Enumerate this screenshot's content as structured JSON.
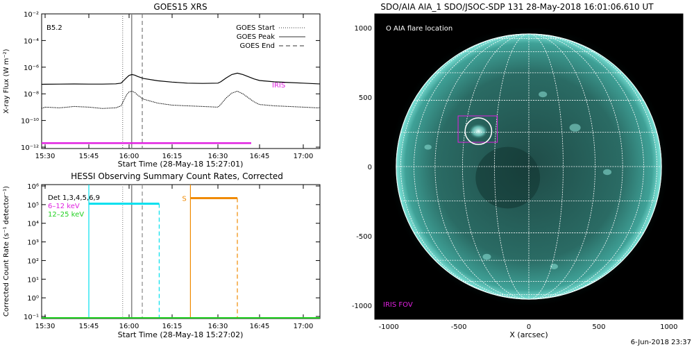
{
  "chart_data": [
    {
      "type": "line",
      "title": "GOES15 XRS",
      "xlabel": "Start Time (28-May-18 15:27:01)",
      "ylabel": "X-ray Flux (W m⁻²)",
      "x_ticks": [
        "15:30",
        "15:45",
        "16:00",
        "16:15",
        "16:30",
        "16:45",
        "17:00"
      ],
      "y_ticks": [
        "10⁻¹²",
        "10⁻¹⁰",
        "10⁻⁸",
        "10⁻⁶",
        "10⁻⁴",
        "10⁻²"
      ],
      "xlim_minutes": [
        25,
        65
      ],
      "ylim_log10": [
        -12,
        -2
      ],
      "class_label": "B5.2",
      "legend": [
        {
          "label": "GOES Start",
          "style": "dotted",
          "x_min": 57.6
        },
        {
          "label": "GOES Peak",
          "style": "solid",
          "x_min": 60.9
        },
        {
          "label": "GOES End",
          "style": "dashed",
          "x_min": 64.6
        }
      ],
      "legend_position": "top-right",
      "iris_label": "IRIS",
      "iris_color": "#e020e0",
      "iris_bar": {
        "x_start_min": 25,
        "x_end_min": 102,
        "log10_value": -11.7
      },
      "series": [
        {
          "channel": "long",
          "x_min": [
            25,
            30,
            35,
            40,
            45,
            50,
            55,
            57,
            58,
            59,
            60,
            61,
            62,
            63,
            65,
            70,
            75,
            80,
            85,
            90,
            91,
            93,
            95,
            97,
            99,
            101,
            103,
            105,
            110,
            115,
            120,
            125,
            127
          ],
          "log10_flux": [
            -7.3,
            -7.28,
            -7.27,
            -7.26,
            -7.27,
            -7.27,
            -7.25,
            -7.2,
            -7.0,
            -6.8,
            -6.62,
            -6.55,
            -6.6,
            -6.7,
            -6.85,
            -7.02,
            -7.12,
            -7.2,
            -7.22,
            -7.2,
            -7.1,
            -6.8,
            -6.55,
            -6.45,
            -6.55,
            -6.72,
            -6.88,
            -7.0,
            -7.1,
            -7.15,
            -7.2,
            -7.25,
            -7.27
          ]
        },
        {
          "channel": "short",
          "x_min": [
            25,
            26,
            28,
            30,
            35,
            40,
            45,
            50,
            55,
            57,
            58,
            59,
            60,
            61,
            62,
            63,
            65,
            70,
            75,
            80,
            85,
            90,
            91,
            93,
            95,
            97,
            99,
            101,
            103,
            105,
            110,
            115,
            120,
            125,
            127
          ],
          "log10_flux": [
            -8.9,
            -9.1,
            -9.15,
            -9.0,
            -9.05,
            -8.95,
            -9.0,
            -9.1,
            -9.05,
            -8.9,
            -8.5,
            -8.1,
            -7.85,
            -7.8,
            -7.9,
            -8.1,
            -8.4,
            -8.7,
            -8.85,
            -8.9,
            -8.95,
            -9.0,
            -8.8,
            -8.3,
            -7.95,
            -7.8,
            -8.0,
            -8.3,
            -8.6,
            -8.8,
            -8.9,
            -8.95,
            -9.0,
            -9.05,
            -9.0
          ]
        }
      ]
    },
    {
      "type": "line",
      "title": "HESSI Observing Summary Count Rates, Corrected",
      "xlabel": "Start Time (28-May-18 15:27:02)",
      "ylabel": "Corrected Count Rate (s⁻¹ detector⁻¹)",
      "x_ticks": [
        "15:30",
        "15:45",
        "16:00",
        "16:15",
        "16:30",
        "16:45",
        "17:00"
      ],
      "y_ticks": [
        "10⁻¹",
        "10⁰",
        "10¹",
        "10²",
        "10³",
        "10⁴",
        "10⁵",
        "10⁶"
      ],
      "ylim_log10": [
        -1,
        6
      ],
      "legend_title": "Det 1,3,4,5,6,9",
      "legend": [
        {
          "label": "6–12 keV",
          "color": "#e020e0"
        },
        {
          "label": "12–25 keV",
          "color": "#20d020"
        }
      ],
      "segments": [
        {
          "color": "#00e0ee",
          "x_start_min": 45,
          "x_end_min": 70.5,
          "log10_value": 5.05,
          "start_line": "solid",
          "end_line": "dashed"
        },
        {
          "color": "#f08a00",
          "label": "S",
          "x_start_min": 81,
          "x_end_min": 97,
          "log10_value": 5.35,
          "start_line": "solid",
          "end_line": "dashed"
        }
      ],
      "baseline_color": "#20d020",
      "vlines_min": [
        {
          "x": 57.6,
          "style": "dotted"
        },
        {
          "x": 60.9,
          "style": "solid"
        },
        {
          "x": 64.6,
          "style": "dashed"
        }
      ]
    },
    {
      "type": "image",
      "title": "SDO/AIA AIA_1 SDO/JSOC-SDP 131 28-May-2018 16:01:06.610 UT",
      "xlabel": "X (arcsec)",
      "x_ticks": [
        -1000,
        -500,
        0,
        500,
        1000
      ],
      "y_ticks": [
        1000,
        500,
        0,
        -500,
        -1000
      ],
      "xlim": [
        -1100,
        1100
      ],
      "ylim": [
        -1100,
        1100
      ],
      "legend_text": "O AIA flare location",
      "iris_label": "IRIS FOV",
      "iris_color": "#e020e0",
      "flare_location": {
        "x": -360,
        "y": 255,
        "radius": 95
      },
      "iris_fov": {
        "x0": -505,
        "x1": -225,
        "y0": 175,
        "y1": 365
      },
      "solar_radius_arcsec": 947,
      "grid_step_deg": 15,
      "footer": "6-Jun-2018 23:37"
    }
  ]
}
